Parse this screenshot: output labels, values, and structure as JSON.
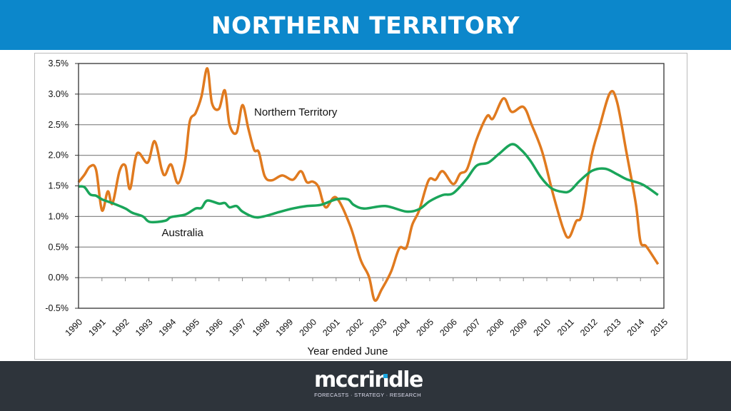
{
  "header": {
    "title": "NORTHERN TERRITORY"
  },
  "footer": {
    "logo_text": "mccrindle",
    "logo_tagline": "FORECASTS · STRATEGY · RESEARCH",
    "logo_accent": "#1ba6df"
  },
  "colors": {
    "header": "#0c87cb",
    "footer": "#2e343b",
    "nt": "#e07a1f",
    "australia": "#1aa55a"
  },
  "chart_data": {
    "type": "line",
    "xlabel": "Year ended June",
    "ylabel": "",
    "xlim": [
      1990,
      2015
    ],
    "ylim": [
      -0.5,
      3.5
    ],
    "grid": true,
    "x_ticks": [
      "1990",
      "1991",
      "1992",
      "1993",
      "1994",
      "1995",
      "1996",
      "1997",
      "1998",
      "1999",
      "2000",
      "2001",
      "2002",
      "2003",
      "2004",
      "2005",
      "2006",
      "2007",
      "2008",
      "2009",
      "2010",
      "2011",
      "2012",
      "2013",
      "2014",
      "2015"
    ],
    "y_ticks": [
      "-0.5%",
      "0.0%",
      "0.5%",
      "1.0%",
      "1.5%",
      "2.0%",
      "2.5%",
      "3.0%",
      "3.5%"
    ],
    "y_tick_values": [
      -0.5,
      0,
      0.5,
      1,
      1.5,
      2,
      2.5,
      3,
      3.5
    ],
    "series": [
      {
        "name": "Northern Territory",
        "color": "#e07a1f",
        "label_at": [
          1997.5,
          2.65
        ],
        "x": [
          1990.0,
          1990.25,
          1990.5,
          1990.75,
          1991.0,
          1991.25,
          1991.45,
          1991.75,
          1992.0,
          1992.2,
          1992.5,
          1992.95,
          1993.25,
          1993.55,
          1993.7,
          1993.95,
          1994.25,
          1994.55,
          1994.75,
          1995.0,
          1995.25,
          1995.5,
          1995.7,
          1996.0,
          1996.25,
          1996.45,
          1996.75,
          1997.0,
          1997.25,
          1997.5,
          1997.7,
          1997.95,
          1998.25,
          1998.7,
          1999.15,
          1999.5,
          1999.75,
          2000.0,
          2000.25,
          2000.55,
          2001.0,
          2001.6,
          2002.05,
          2002.4,
          2002.65,
          2002.95,
          2003.35,
          2003.7,
          2004.0,
          2004.25,
          2004.55,
          2004.95,
          2005.25,
          2005.55,
          2006.0,
          2006.3,
          2006.6,
          2007.0,
          2007.45,
          2007.7,
          2008.15,
          2008.5,
          2009.0,
          2009.35,
          2009.8,
          2010.25,
          2010.7,
          2010.95,
          2011.25,
          2011.5,
          2011.9,
          2012.25,
          2012.7,
          2013.0,
          2013.4,
          2013.8,
          2014.0,
          2014.25,
          2014.75
        ],
        "values": [
          1.56,
          1.68,
          1.82,
          1.76,
          1.1,
          1.41,
          1.21,
          1.74,
          1.83,
          1.45,
          2.03,
          1.88,
          2.23,
          1.77,
          1.68,
          1.85,
          1.54,
          1.91,
          2.55,
          2.69,
          2.96,
          3.42,
          2.85,
          2.76,
          3.06,
          2.5,
          2.37,
          2.82,
          2.44,
          2.09,
          2.05,
          1.66,
          1.59,
          1.67,
          1.6,
          1.74,
          1.56,
          1.57,
          1.48,
          1.15,
          1.31,
          0.85,
          0.29,
          0.02,
          -0.37,
          -0.19,
          0.1,
          0.48,
          0.49,
          0.86,
          1.1,
          1.59,
          1.6,
          1.74,
          1.53,
          1.7,
          1.78,
          2.26,
          2.64,
          2.6,
          2.93,
          2.71,
          2.79,
          2.5,
          2.06,
          1.39,
          0.8,
          0.66,
          0.92,
          1.04,
          1.97,
          2.46,
          3.02,
          2.87,
          2.05,
          1.21,
          0.59,
          0.51,
          0.22
        ]
      },
      {
        "name": "Australia",
        "color": "#1aa55a",
        "label_at": [
          1993.55,
          0.68
        ],
        "x": [
          1990.0,
          1990.25,
          1990.5,
          1990.75,
          1991.0,
          1991.5,
          1992.0,
          1992.3,
          1992.75,
          1993.05,
          1993.7,
          1993.95,
          1994.55,
          1995.0,
          1995.25,
          1995.5,
          1996.0,
          1996.25,
          1996.45,
          1996.75,
          1997.0,
          1997.5,
          1997.9,
          1998.55,
          1999.15,
          1999.75,
          2000.35,
          2001.0,
          2001.5,
          2001.75,
          2002.2,
          2003.1,
          2004.0,
          2004.55,
          2005.0,
          2005.55,
          2006.0,
          2006.55,
          2007.0,
          2007.5,
          2007.95,
          2008.5,
          2008.9,
          2009.3,
          2009.75,
          2010.2,
          2010.7,
          2011.0,
          2011.4,
          2011.95,
          2012.5,
          2013.0,
          2013.4,
          2014.1,
          2014.75
        ],
        "values": [
          1.49,
          1.48,
          1.36,
          1.34,
          1.28,
          1.21,
          1.13,
          1.06,
          1.0,
          0.91,
          0.93,
          0.99,
          1.03,
          1.13,
          1.14,
          1.26,
          1.21,
          1.22,
          1.15,
          1.17,
          1.08,
          0.99,
          1.0,
          1.07,
          1.13,
          1.17,
          1.19,
          1.28,
          1.28,
          1.19,
          1.13,
          1.17,
          1.08,
          1.12,
          1.25,
          1.35,
          1.38,
          1.6,
          1.83,
          1.88,
          2.02,
          2.18,
          2.09,
          1.91,
          1.64,
          1.46,
          1.4,
          1.42,
          1.58,
          1.75,
          1.78,
          1.69,
          1.61,
          1.52,
          1.35
        ]
      }
    ]
  }
}
